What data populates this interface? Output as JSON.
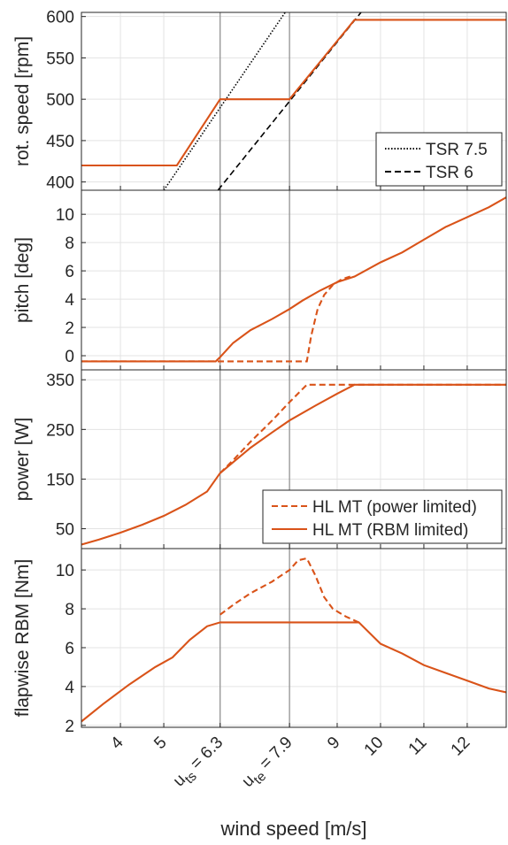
{
  "colors": {
    "series": "#D95319",
    "tsr": "#000000",
    "grid": "#e3e3e3",
    "axis": "#262626",
    "marker_line": "#8c8c8c"
  },
  "xlabel": "wind speed [m/s]",
  "xlim": [
    3.1,
    12.9
  ],
  "xticks": [
    {
      "v": 4,
      "label": "4"
    },
    {
      "v": 5,
      "label": "5"
    },
    {
      "v": 6.3,
      "label": "6.3",
      "prefix": "u",
      "sub": "ts"
    },
    {
      "v": 7.9,
      "label": "7.9",
      "prefix": "u",
      "sub": "te"
    },
    {
      "v": 9,
      "label": "9"
    },
    {
      "v": 10,
      "label": "10"
    },
    {
      "v": 11,
      "label": "11"
    },
    {
      "v": 12,
      "label": "12"
    }
  ],
  "vlines": [
    6.3,
    7.9
  ],
  "chart_data": [
    {
      "type": "line",
      "ylabel": "rot. speed [rpm]",
      "ylim": [
        390,
        605
      ],
      "yticks": [
        400,
        450,
        500,
        550,
        600
      ],
      "legend": "bottom-right",
      "series": [
        {
          "name": "TSR 7.5",
          "style": "dotted",
          "color": "#000000",
          "x": [
            5.0,
            7.8
          ],
          "y": [
            390,
            605
          ]
        },
        {
          "name": "TSR 6",
          "style": "dashed",
          "color": "#000000",
          "x": [
            6.25,
            9.55
          ],
          "y": [
            390,
            605
          ]
        },
        {
          "style": "solid",
          "color": "#D95319",
          "x": [
            3.1,
            5.3,
            6.3,
            7.9,
            9.4,
            12.9
          ],
          "y": [
            420,
            420,
            500,
            500,
            596,
            596
          ]
        }
      ]
    },
    {
      "type": "line",
      "ylabel": "pitch [deg]",
      "ylim": [
        -1,
        11.7
      ],
      "yticks": [
        0,
        2,
        4,
        6,
        8,
        10
      ],
      "series": [
        {
          "style": "dashed",
          "color": "#D95319",
          "x": [
            3.1,
            8.3,
            8.4,
            8.55,
            8.7,
            8.9,
            9.1,
            9.3
          ],
          "y": [
            -0.4,
            -0.4,
            1.4,
            3.3,
            4.3,
            5.0,
            5.4,
            5.6
          ]
        },
        {
          "style": "solid",
          "color": "#D95319",
          "x": [
            3.1,
            6.2,
            6.3,
            6.6,
            7.0,
            7.5,
            7.9,
            8.2,
            8.6,
            9.0,
            9.4,
            10.0,
            10.5,
            11.0,
            11.5,
            12.0,
            12.5,
            12.9
          ],
          "y": [
            -0.4,
            -0.4,
            -0.1,
            0.9,
            1.8,
            2.6,
            3.3,
            3.9,
            4.6,
            5.2,
            5.6,
            6.6,
            7.3,
            8.2,
            9.1,
            9.8,
            10.5,
            11.2
          ]
        }
      ]
    },
    {
      "type": "line",
      "ylabel": "power [W]",
      "ylim": [
        10,
        370
      ],
      "yticks": [
        50,
        150,
        250,
        350
      ],
      "legend": "bottom-right",
      "series": [
        {
          "name": "HL MT (power limited)",
          "style": "dashed",
          "color": "#D95319",
          "x": [
            6.3,
            6.6,
            7.0,
            7.5,
            7.9,
            8.3,
            12.9
          ],
          "y": [
            162,
            188,
            225,
            268,
            305,
            340,
            340
          ]
        },
        {
          "name": "HL MT (RBM limited)",
          "style": "solid",
          "color": "#D95319",
          "x": [
            3.1,
            3.5,
            4.0,
            4.5,
            5.0,
            5.5,
            6.0,
            6.3,
            7.0,
            7.5,
            7.9,
            8.5,
            9.0,
            9.4,
            12.9
          ],
          "y": [
            18,
            28,
            42,
            58,
            76,
            98,
            125,
            162,
            213,
            244,
            268,
            298,
            322,
            340,
            340
          ]
        }
      ]
    },
    {
      "type": "line",
      "ylabel": "flapwise RBM [Nm]",
      "ylim": [
        1.9,
        11.1
      ],
      "yticks": [
        2,
        4,
        6,
        8,
        10
      ],
      "series": [
        {
          "style": "dashed",
          "color": "#D95319",
          "x": [
            6.3,
            6.6,
            7.0,
            7.5,
            7.9,
            8.1,
            8.3,
            8.5,
            8.7,
            8.9,
            9.2,
            9.5
          ],
          "y": [
            7.7,
            8.2,
            8.8,
            9.4,
            10.0,
            10.5,
            10.6,
            9.7,
            8.6,
            8.0,
            7.6,
            7.3
          ]
        },
        {
          "style": "solid",
          "color": "#D95319",
          "x": [
            3.1,
            3.6,
            4.2,
            4.8,
            5.2,
            5.6,
            6.0,
            6.3,
            9.5,
            10.0,
            10.5,
            11.0,
            11.5,
            12.0,
            12.5,
            12.9
          ],
          "y": [
            2.2,
            3.1,
            4.1,
            5.0,
            5.5,
            6.4,
            7.1,
            7.3,
            7.3,
            6.2,
            5.7,
            5.1,
            4.7,
            4.3,
            3.9,
            3.7
          ]
        }
      ]
    }
  ]
}
